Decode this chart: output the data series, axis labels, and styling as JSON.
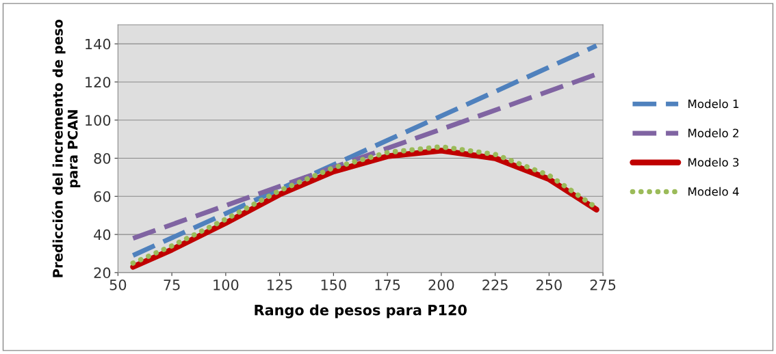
{
  "chart_data": {
    "type": "line",
    "xlabel": "Rango de pesos para P120",
    "ylabel": "Predicción del incremento de peso para PCAN",
    "xlim": [
      50,
      275
    ],
    "xticks": [
      50,
      75,
      100,
      125,
      150,
      175,
      200,
      225,
      250,
      275
    ],
    "ylim": [
      20,
      150
    ],
    "yticks": [
      20,
      40,
      60,
      80,
      100,
      120,
      140
    ],
    "grid": "y",
    "legend": "right",
    "series": [
      {
        "name": "Modelo 1",
        "color": "#4f81bd",
        "line_style": "dashed",
        "x": [
          57,
          272
        ],
        "values": [
          29,
          139
        ]
      },
      {
        "name": "Modelo 2",
        "color": "#8064a2",
        "line_style": "dashed",
        "x": [
          57,
          272
        ],
        "values": [
          38,
          124
        ]
      },
      {
        "name": "Modelo 3",
        "color": "#c00000",
        "line_style": "solid",
        "x": [
          57,
          75,
          100,
          125,
          150,
          175,
          200,
          225,
          250,
          272
        ],
        "values": [
          23,
          32,
          46,
          61,
          73,
          81,
          84,
          80,
          69,
          53
        ]
      },
      {
        "name": "Modelo 4",
        "color": "#9bbb59",
        "line_style": "dotted",
        "x": [
          57,
          75,
          100,
          125,
          150,
          175,
          200,
          225,
          250,
          272
        ],
        "values": [
          25,
          34,
          48,
          63,
          75,
          83,
          86,
          82,
          71,
          54
        ]
      }
    ]
  }
}
